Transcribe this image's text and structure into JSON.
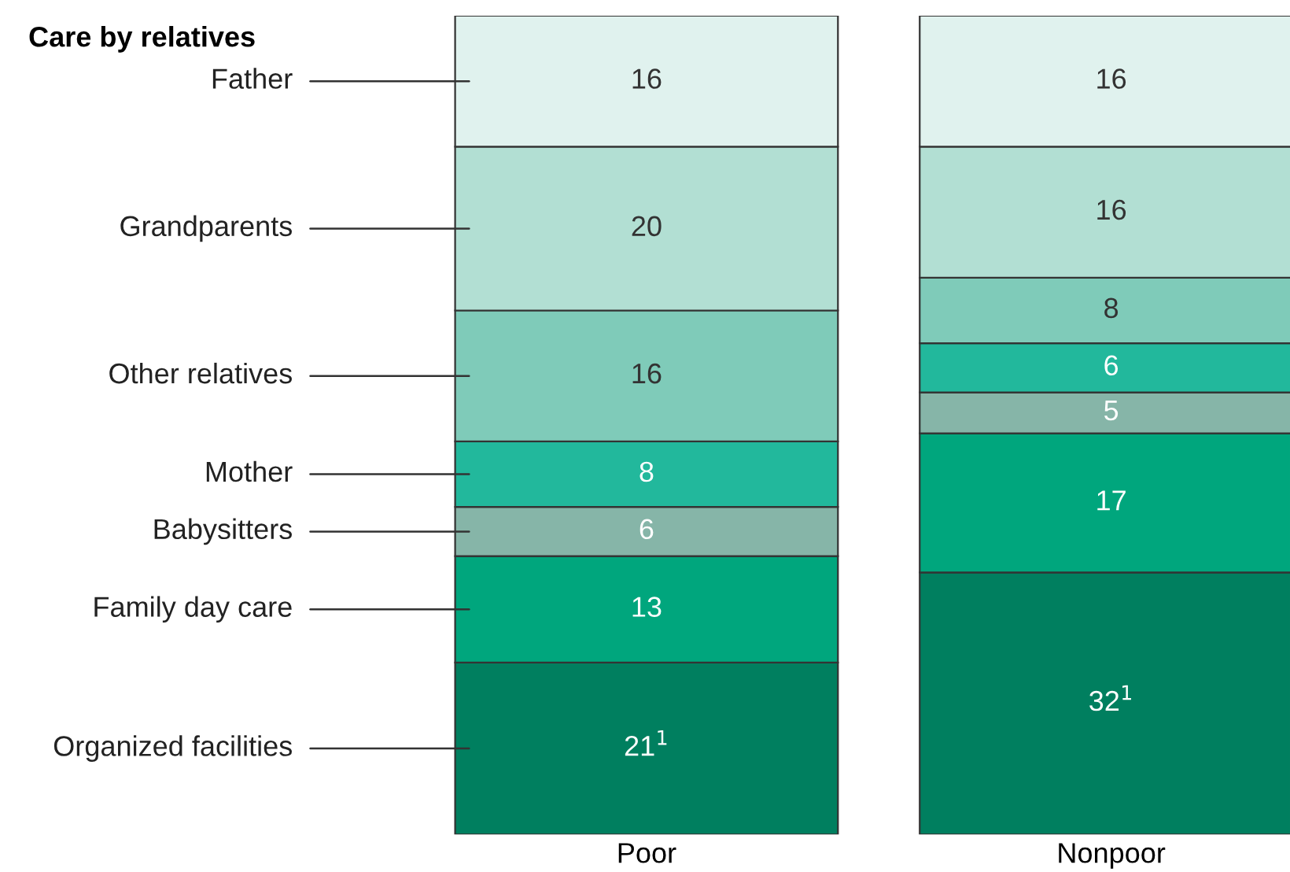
{
  "chart_data": {
    "type": "bar",
    "stacked": true,
    "legend_title": "Care by relatives",
    "legend": "left",
    "categories": [
      "Poor",
      "Nonpoor"
    ],
    "ylim": [
      0,
      100
    ],
    "tick_labels": "x",
    "grid": false,
    "series": [
      {
        "name": "Organized facilities",
        "color": "#007f5f",
        "values": [
          21,
          32
        ],
        "value_labels": [
          "21$^{1}$",
          "32$^{1}$"
        ]
      },
      {
        "name": "Family day care",
        "color": "#00a67d",
        "values": [
          13,
          17
        ],
        "value_labels": [
          "13",
          "17"
        ]
      },
      {
        "name": "Babysitters",
        "color": "#86b5a8",
        "values": [
          6,
          5
        ],
        "value_labels": [
          "6",
          "5"
        ]
      },
      {
        "name": "Mother",
        "color": "#22b89c",
        "values": [
          8,
          6
        ],
        "value_labels": [
          "8",
          "6"
        ]
      },
      {
        "name": "Other relatives",
        "color": "#7fcbb9",
        "values": [
          16,
          8
        ],
        "value_labels": [
          "16",
          "8"
        ]
      },
      {
        "name": "Grandparents",
        "color": "#b2dfd3",
        "values": [
          20,
          16
        ],
        "value_labels": [
          "20",
          "16"
        ]
      },
      {
        "name": "Father",
        "color": "#e0f2ee",
        "values": [
          16,
          16
        ],
        "value_labels": [
          "16",
          "16"
        ]
      }
    ]
  }
}
